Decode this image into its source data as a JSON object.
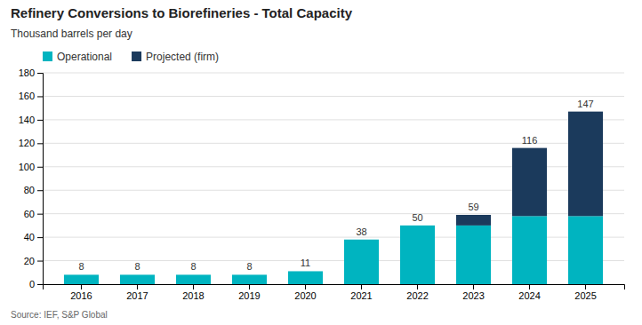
{
  "chart_data": {
    "type": "bar",
    "stacked": true,
    "title": "Refinery Conversions to Biorefineries - Total Capacity",
    "ylabel": "Thousand  barrels per day",
    "annotations": [
      "Source: IEF, S&P Global"
    ],
    "categories": [
      "2016",
      "2017",
      "2018",
      "2019",
      "2020",
      "2021",
      "2022",
      "2023",
      "2024",
      "2025"
    ],
    "series": [
      {
        "name": "Operational",
        "color": "#00B4C0",
        "values": [
          8,
          8,
          8,
          8,
          11,
          38,
          50,
          50,
          58,
          58
        ]
      },
      {
        "name": "Projected (firm)",
        "color": "#1B3A5C",
        "values": [
          0,
          0,
          0,
          0,
          0,
          0,
          0,
          9,
          58,
          89
        ]
      }
    ],
    "totals": [
      8,
      8,
      8,
      8,
      11,
      38,
      50,
      59,
      116,
      147
    ],
    "ylim": [
      0,
      180
    ],
    "yticks": [
      0,
      20,
      40,
      60,
      80,
      100,
      120,
      140,
      160,
      180
    ],
    "grid": true,
    "legend": "top-left"
  }
}
